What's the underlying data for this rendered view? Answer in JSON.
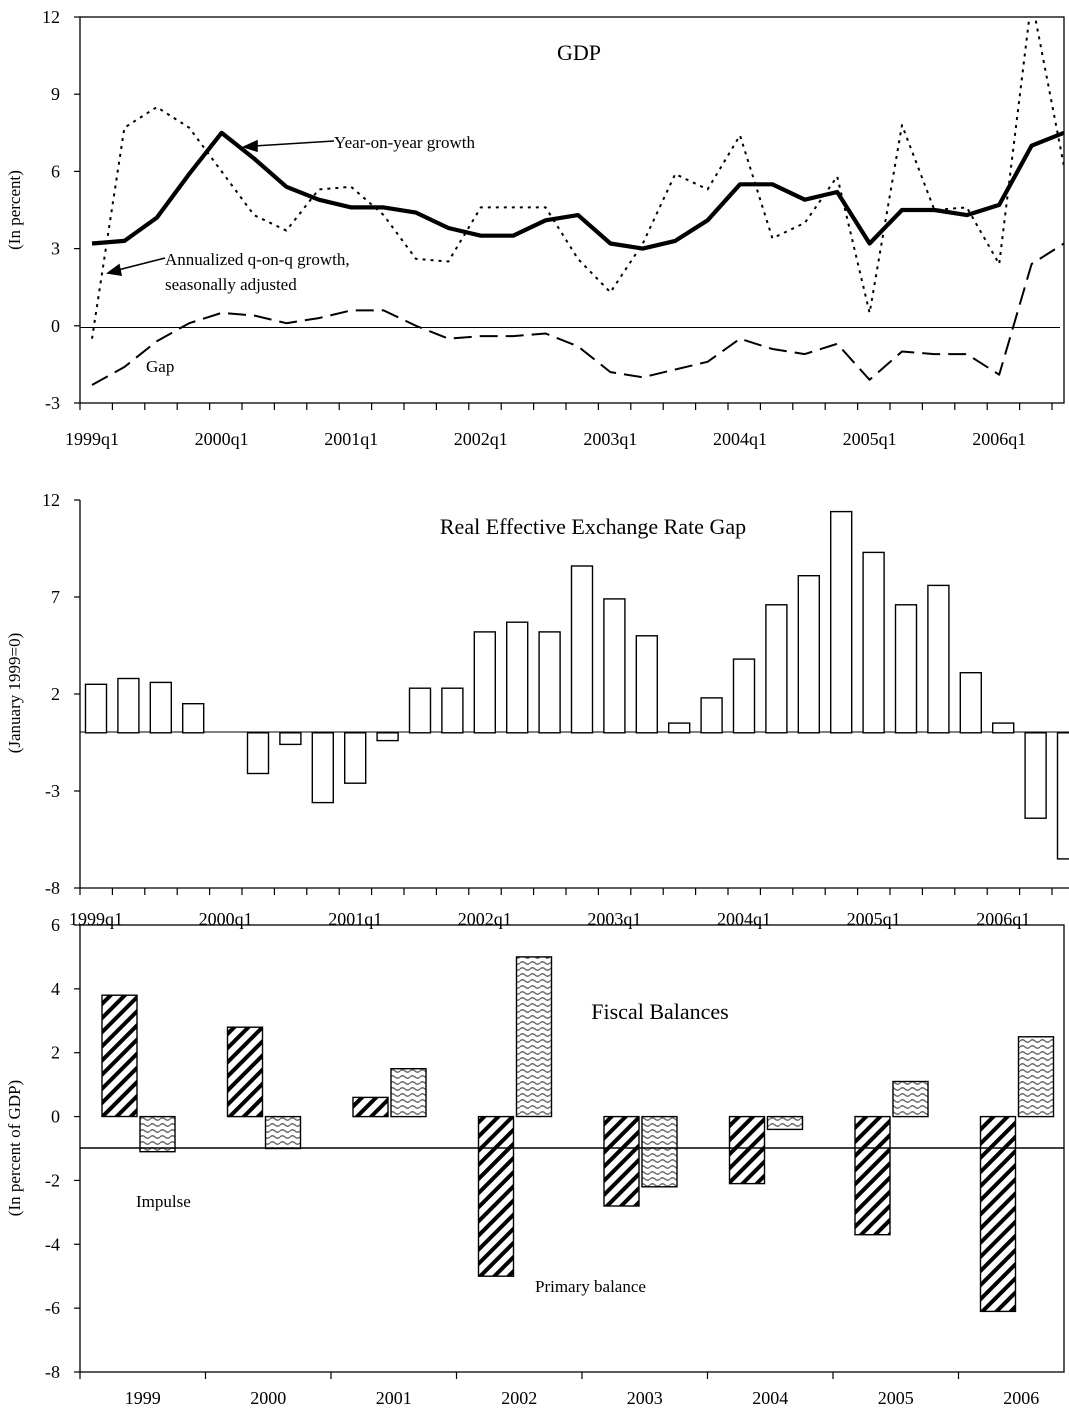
{
  "chart_data": [
    {
      "type": "line",
      "title": "GDP",
      "ylabel": "(In percent)",
      "ylim": [
        -3,
        12
      ],
      "yticks": [
        "-3",
        "0",
        "3",
        "6",
        "9",
        "12"
      ],
      "x_tick_labels": [
        "1999q1",
        "2000q1",
        "2001q1",
        "2002q1",
        "2003q1",
        "2004q1",
        "2005q1",
        "2006q1"
      ],
      "x": [
        "1999q1",
        "1999q2",
        "1999q3",
        "1999q4",
        "2000q1",
        "2000q2",
        "2000q3",
        "2000q4",
        "2001q1",
        "2001q2",
        "2001q3",
        "2001q4",
        "2002q1",
        "2002q2",
        "2002q3",
        "2002q4",
        "2003q1",
        "2003q2",
        "2003q3",
        "2003q4",
        "2004q1",
        "2004q2",
        "2004q3",
        "2004q4",
        "2005q1",
        "2005q2",
        "2005q3",
        "2005q4",
        "2006q1",
        "2006q2",
        "2006q3"
      ],
      "series": [
        {
          "name": "Year-on-year growth",
          "style": "solid-thick",
          "values": [
            3.2,
            3.3,
            4.2,
            5.9,
            7.5,
            6.5,
            5.4,
            4.9,
            4.6,
            4.6,
            4.4,
            3.8,
            3.5,
            3.5,
            4.1,
            4.3,
            3.2,
            3.0,
            3.3,
            4.1,
            5.5,
            5.5,
            4.9,
            5.2,
            3.2,
            4.5,
            4.5,
            4.3,
            4.7,
            7.0,
            7.5
          ]
        },
        {
          "name": "Annualized q-on-q growth, seasonally adjusted",
          "style": "dotted",
          "values": [
            -0.5,
            7.7,
            8.5,
            7.7,
            6.0,
            4.3,
            3.7,
            5.3,
            5.4,
            4.3,
            2.6,
            2.5,
            4.6,
            4.6,
            4.6,
            2.6,
            1.3,
            3.2,
            5.9,
            5.3,
            7.4,
            3.4,
            4.0,
            5.8,
            0.5,
            7.8,
            4.5,
            4.6,
            2.4,
            12.7,
            6.2
          ]
        },
        {
          "name": "Gap",
          "style": "dashed",
          "values": [
            -2.3,
            -1.6,
            -0.6,
            0.1,
            0.5,
            0.4,
            0.1,
            0.3,
            0.6,
            0.6,
            0.0,
            -0.5,
            -0.4,
            -0.4,
            -0.3,
            -0.8,
            -1.8,
            -2.0,
            -1.7,
            -1.4,
            -0.5,
            -0.9,
            -1.1,
            -0.7,
            -2.1,
            -1.0,
            -1.1,
            -1.1,
            -1.9,
            2.4,
            3.2
          ]
        }
      ],
      "annotations": [
        "GDP",
        "Year-on-year growth",
        "Annualized q-on-q growth,",
        "seasonally adjusted",
        "Gap"
      ],
      "zero_line": true,
      "grid": false
    },
    {
      "type": "bar",
      "title": "Real Effective Exchange Rate Gap",
      "ylabel": "(January 1999=0)",
      "ylim": [
        -8,
        12
      ],
      "yticks": [
        "-8",
        "-3",
        "2",
        "7",
        "12"
      ],
      "x_tick_labels": [
        "1999q1",
        "2000q1",
        "2001q1",
        "2002q1",
        "2003q1",
        "2004q1",
        "2005q1",
        "2006q1"
      ],
      "categories": [
        "1999q1",
        "1999q2",
        "1999q3",
        "1999q4",
        "2000q1",
        "2000q2",
        "2000q3",
        "2000q4",
        "2001q1",
        "2001q2",
        "2001q3",
        "2001q4",
        "2002q1",
        "2002q2",
        "2002q3",
        "2002q4",
        "2003q1",
        "2003q2",
        "2003q3",
        "2003q4",
        "2004q1",
        "2004q2",
        "2004q3",
        "2004q4",
        "2005q1",
        "2005q2",
        "2005q3",
        "2005q4",
        "2006q1",
        "2006q2",
        "2006q3"
      ],
      "values": [
        2.5,
        2.8,
        2.6,
        1.5,
        0,
        -2.1,
        -0.6,
        -3.6,
        -2.6,
        -0.4,
        2.3,
        2.3,
        5.2,
        5.7,
        5.2,
        8.6,
        6.9,
        5.0,
        0.5,
        1.8,
        3.8,
        6.6,
        8.1,
        11.4,
        9.3,
        6.6,
        7.6,
        3.1,
        0.5,
        -4.4,
        -6.5
      ],
      "grid": false
    },
    {
      "type": "bar",
      "title": "Fiscal Balances",
      "ylabel": "(In percent of GDP)",
      "ylim": [
        -8,
        6
      ],
      "yticks": [
        "-8",
        "-6",
        "-4",
        "-2",
        "0",
        "2",
        "4",
        "6"
      ],
      "categories": [
        "1999",
        "2000",
        "2001",
        "2002",
        "2003",
        "2004",
        "2005",
        "2006"
      ],
      "series": [
        {
          "name": "Primary balance",
          "pattern": "diagonal-hatch",
          "values": [
            3.8,
            2.8,
            0.6,
            -5.0,
            -2.8,
            -2.1,
            -3.7,
            -6.1
          ]
        },
        {
          "name": "Impulse",
          "pattern": "wavy",
          "values": [
            -1.1,
            -1.0,
            1.5,
            5.0,
            -2.2,
            -0.4,
            1.1,
            2.5
          ]
        }
      ],
      "grid": false
    }
  ]
}
